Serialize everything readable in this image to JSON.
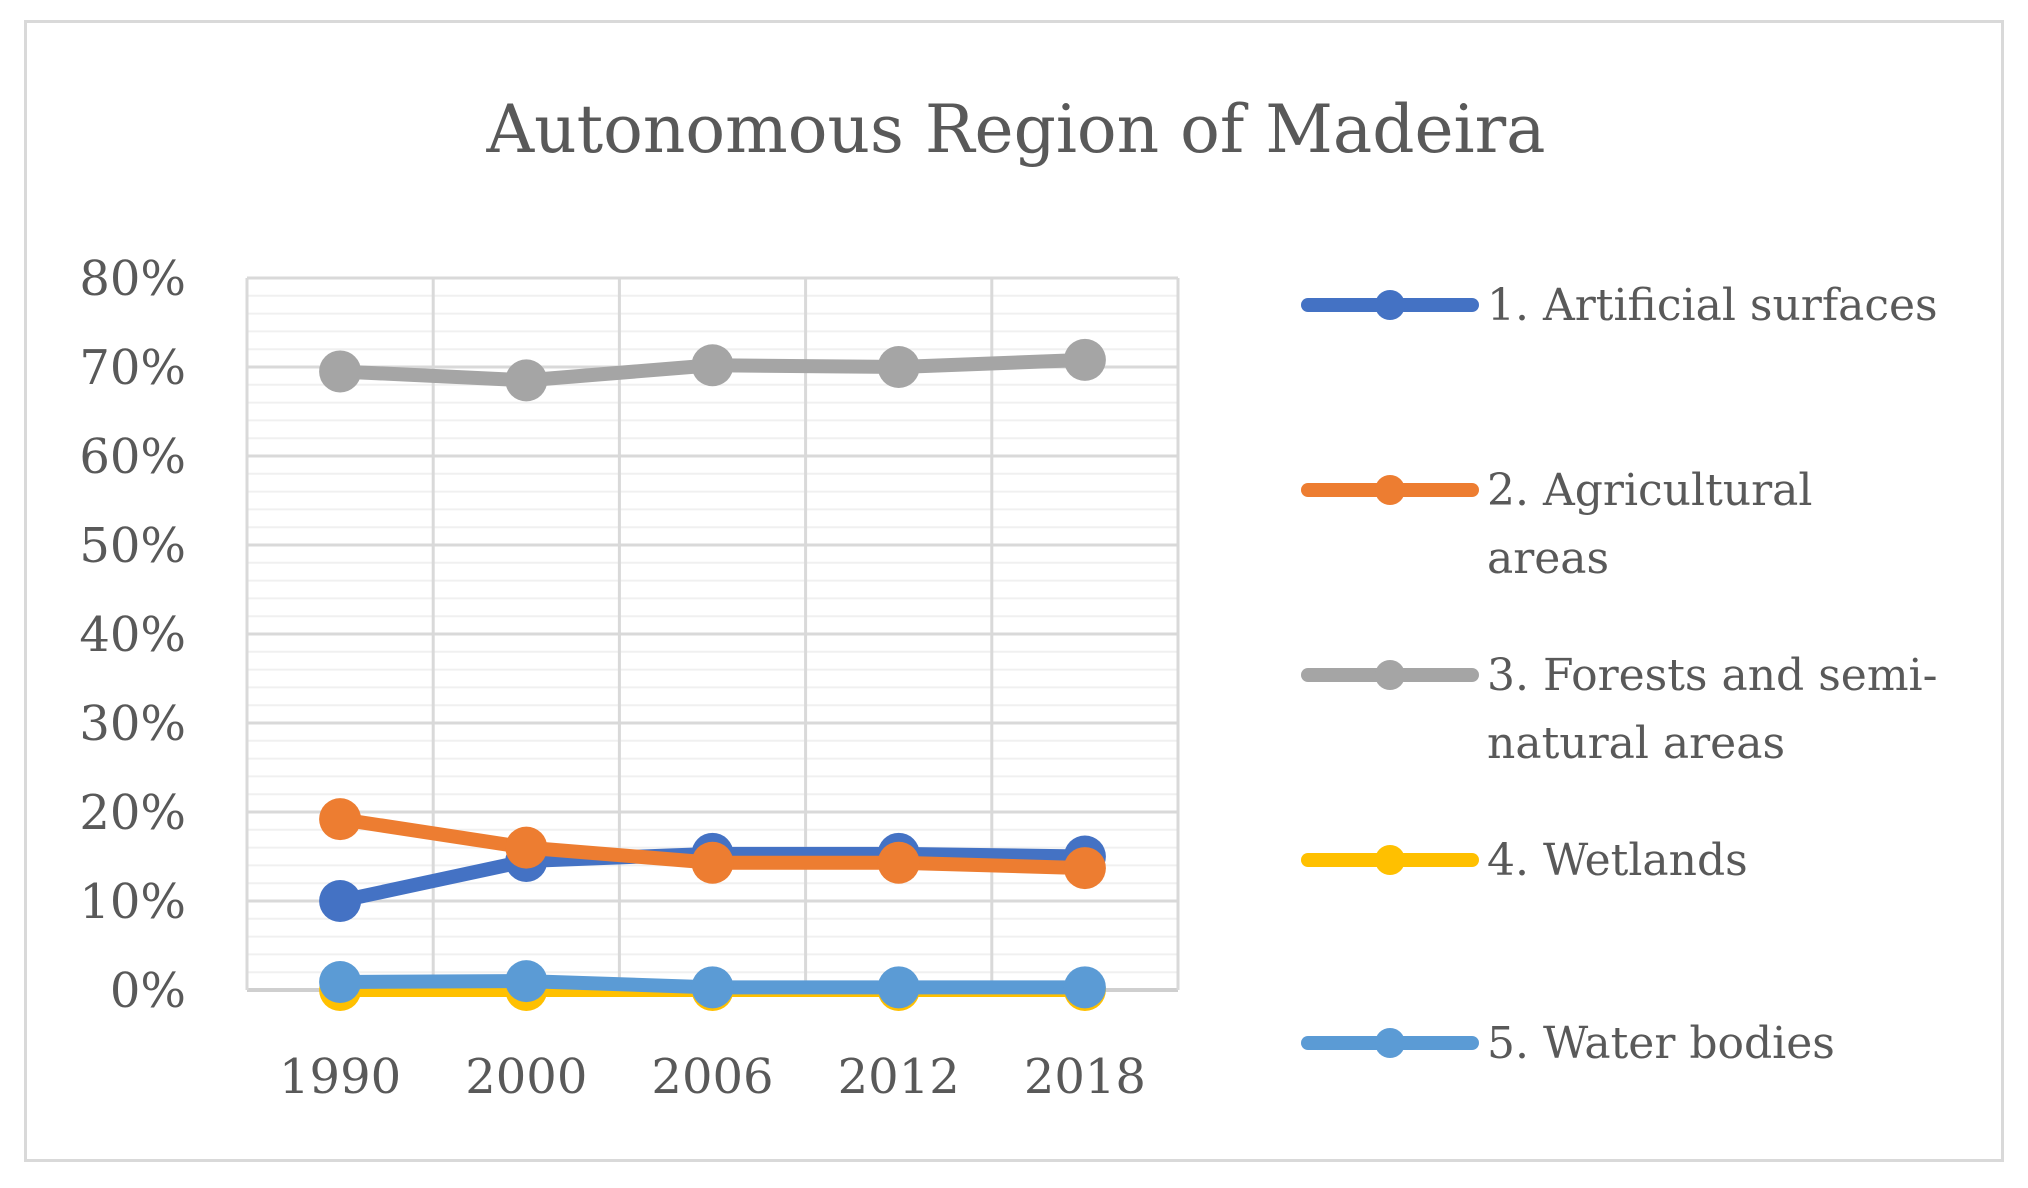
{
  "chart_data": {
    "type": "line",
    "title": "Autonomous Region of Madeira",
    "xlabel": "",
    "ylabel": "",
    "categories": [
      "1990",
      "2000",
      "2006",
      "2012",
      "2018"
    ],
    "ylim": [
      0,
      80
    ],
    "y_ticks": [
      "0%",
      "10%",
      "20%",
      "30%",
      "40%",
      "50%",
      "60%",
      "70%",
      "80%"
    ],
    "grid": true,
    "legend_position": "right",
    "series": [
      {
        "name": "1. Artificial surfaces",
        "name_lines": [
          "1. Artificial surfaces"
        ],
        "color": "#4472c4",
        "values": [
          10.0,
          14.5,
          15.3,
          15.3,
          15.0
        ]
      },
      {
        "name": "2. Agricultural areas",
        "name_lines": [
          "2. Agricultural",
          "areas"
        ],
        "color": "#ed7d31",
        "values": [
          19.2,
          16.0,
          14.3,
          14.3,
          13.7
        ]
      },
      {
        "name": "3. Forests and semi-natural areas",
        "name_lines": [
          "3. Forests and semi-",
          "natural areas"
        ],
        "color": "#a5a5a5",
        "values": [
          69.5,
          68.5,
          70.2,
          70.0,
          70.8
        ]
      },
      {
        "name": "4. Wetlands",
        "name_lines": [
          "4. Wetlands"
        ],
        "color": "#ffc000",
        "values": [
          0.0,
          0.0,
          0.0,
          0.0,
          0.0
        ]
      },
      {
        "name": "5. Water bodies",
        "name_lines": [
          "5. Water bodies"
        ],
        "color": "#5b9bd5",
        "values": [
          0.9,
          1.0,
          0.3,
          0.3,
          0.3
        ]
      }
    ]
  }
}
